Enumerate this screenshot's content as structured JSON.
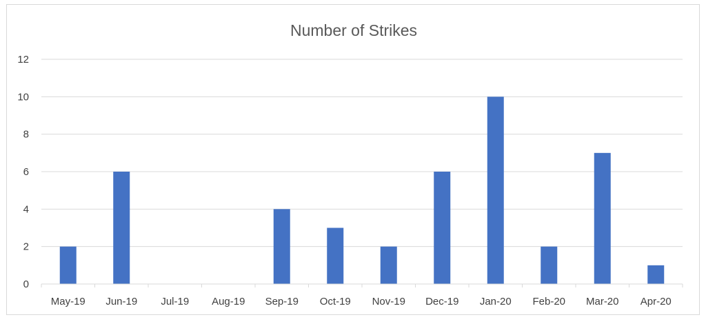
{
  "chart_data": {
    "type": "bar",
    "title": "Number of Strikes",
    "xlabel": "",
    "ylabel": "",
    "categories": [
      "May-19",
      "Jun-19",
      "Jul-19",
      "Aug-19",
      "Sep-19",
      "Oct-19",
      "Nov-19",
      "Dec-19",
      "Jan-20",
      "Feb-20",
      "Mar-20",
      "Apr-20"
    ],
    "values": [
      2,
      6,
      0,
      0,
      4,
      3,
      2,
      6,
      10,
      2,
      7,
      1
    ],
    "ylim": [
      0,
      12
    ],
    "yticks": [
      "0",
      "2",
      "4",
      "6",
      "8",
      "10",
      "12"
    ],
    "grid": true,
    "legend": "none",
    "bar_color": "#4472C4",
    "grid_color": "#d9d9d9"
  }
}
